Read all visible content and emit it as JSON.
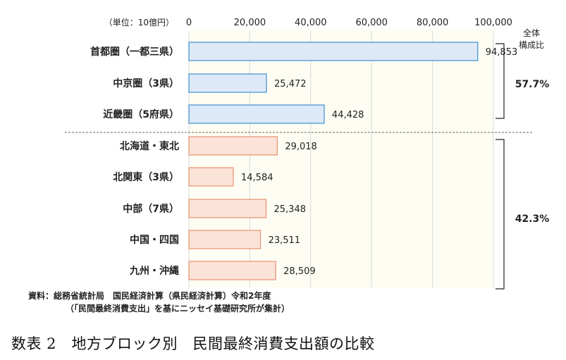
{
  "chart_data": {
    "type": "bar",
    "orientation": "horizontal",
    "unit_label": "（単位：10億円）",
    "xlim": [
      0,
      100000
    ],
    "x_ticks": [
      0,
      20000,
      40000,
      60000,
      80000,
      100000
    ],
    "x_tick_labels": [
      "0",
      "20,000",
      "40,000",
      "60,000",
      "80,000",
      "100,000"
    ],
    "grid": true,
    "categories": [
      "首都圏（一都三県）",
      "中京圏（3県）",
      "近畿圏（5府県）",
      "北海道・東北",
      "北関東（3県）",
      "中部（7県）",
      "中国・四国",
      "九州・沖縄"
    ],
    "values": [
      94853,
      25472,
      44428,
      29018,
      14584,
      25348,
      23511,
      28509
    ],
    "value_labels": [
      "94,853",
      "25,472",
      "44,428",
      "29,018",
      "14,584",
      "25,348",
      "23,511",
      "28,509"
    ],
    "groups": [
      {
        "members": [
          0,
          1,
          2
        ],
        "share": "57.7%",
        "color": "#dde9f7",
        "border": "#3d8fd1"
      },
      {
        "members": [
          3,
          4,
          5,
          6,
          7
        ],
        "share": "42.3%",
        "color": "#fbe3d8",
        "border": "#e89070"
      }
    ],
    "share_header": [
      "全体",
      "構成比"
    ],
    "source_lines": [
      "資料：総務省統計局　国民経済計算（県民経済計算）令和2年度",
      "（「民間最終消費支出」を基にニッセイ基礎研究所が集計）"
    ]
  },
  "caption": "数表 2　地方ブロック別　民間最終消費支出額の比較"
}
